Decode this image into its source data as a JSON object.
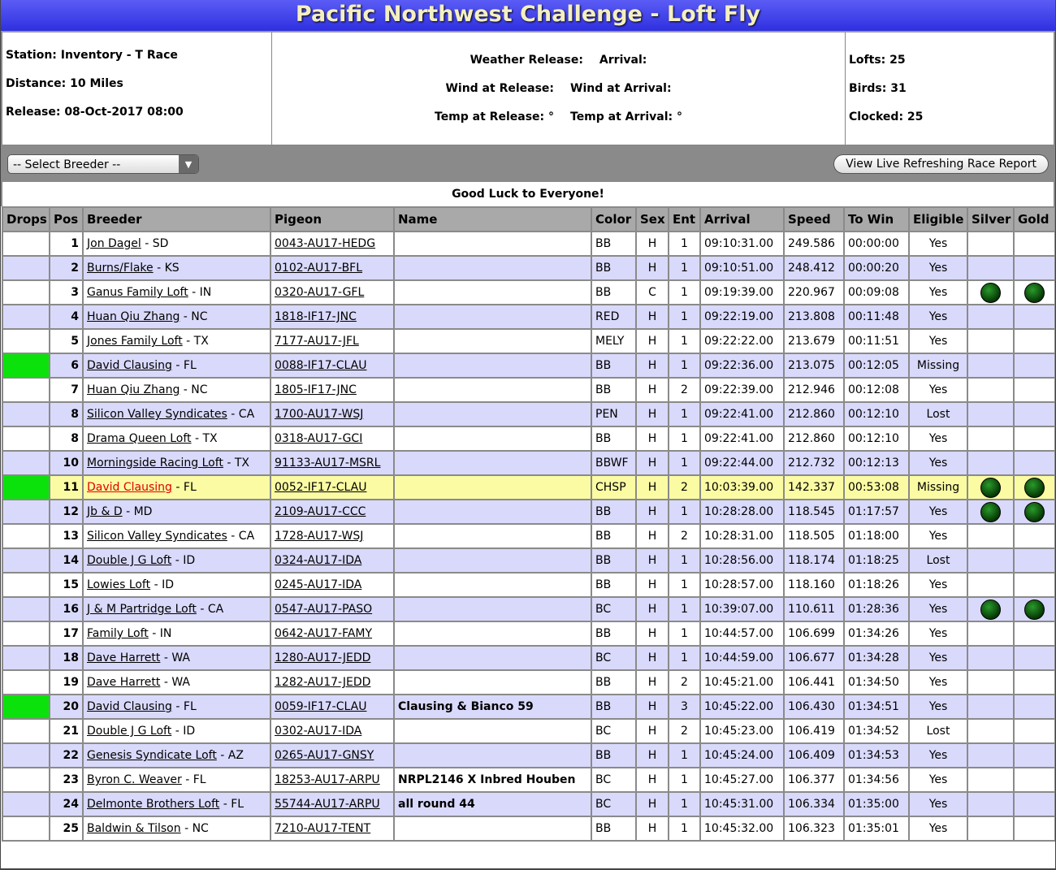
{
  "header": {
    "title": "Pacific Northwest Challenge - Loft Fly"
  },
  "info": {
    "left": [
      "Station: Inventory - T Race",
      "Distance: 10 Miles",
      "Release: 08-Oct-2017 08:00"
    ],
    "middle": [
      [
        "Weather Release:",
        "Arrival:"
      ],
      [
        "Wind at Release:",
        "Wind at Arrival:"
      ],
      [
        "Temp at Release: °",
        "Temp at Arrival: °"
      ]
    ],
    "right": [
      "Lofts: 25",
      "Birds: 31",
      "Clocked: 25"
    ]
  },
  "toolbar": {
    "select": "-- Select Breeder --",
    "button": "View Live Refreshing Race Report"
  },
  "table": {
    "caption": "Good Luck to Everyone!",
    "headers": [
      "Drops",
      "Pos",
      "Breeder",
      "Pigeon",
      "Name",
      "Color",
      "Sex",
      "Ent",
      "Arrival",
      "Speed",
      "To Win",
      "Eligible",
      "Silver",
      "Gold"
    ],
    "rows": [
      {
        "pos": "1",
        "breeder": "Jon Dagel",
        "state": "- SD",
        "pigeon": "0043-AU17-HEDG",
        "color": "BB",
        "sex": "H",
        "ent": "1",
        "arrival": "09:10:31.00",
        "speed": "249.586",
        "to_win": "00:00:00",
        "eligible": "Yes"
      },
      {
        "pos": "2",
        "breeder": "Burns/Flake",
        "state": "- KS",
        "pigeon": "0102-AU17-BFL",
        "color": "BB",
        "sex": "H",
        "ent": "1",
        "arrival": "09:10:51.00",
        "speed": "248.412",
        "to_win": "00:00:20",
        "eligible": "Yes"
      },
      {
        "pos": "3",
        "breeder": "Ganus Family Loft",
        "state": "- IN",
        "pigeon": "0320-AU17-GFL",
        "color": "BB",
        "sex": "C",
        "ent": "1",
        "arrival": "09:19:39.00",
        "speed": "220.967",
        "to_win": "00:09:08",
        "eligible": "Yes",
        "silver": true,
        "gold": true
      },
      {
        "pos": "4",
        "breeder": "Huan Qiu Zhang",
        "state": "- NC",
        "pigeon": "1818-IF17-JNC",
        "color": "RED",
        "sex": "H",
        "ent": "1",
        "arrival": "09:22:19.00",
        "speed": "213.808",
        "to_win": "00:11:48",
        "eligible": "Yes"
      },
      {
        "pos": "5",
        "breeder": "Jones Family Loft",
        "state": "- TX",
        "pigeon": "7177-AU17-JFL",
        "color": "MELY",
        "sex": "H",
        "ent": "1",
        "arrival": "09:22:22.00",
        "speed": "213.679",
        "to_win": "00:11:51",
        "eligible": "Yes"
      },
      {
        "pos": "6",
        "breeder": "David Clausing",
        "state": "- FL",
        "pigeon": "0088-IF17-CLAU",
        "color": "BB",
        "sex": "H",
        "ent": "1",
        "arrival": "09:22:36.00",
        "speed": "213.075",
        "to_win": "00:12:05",
        "eligible": "Missing",
        "drops": true
      },
      {
        "pos": "7",
        "breeder": "Huan Qiu Zhang",
        "state": "- NC",
        "pigeon": "1805-IF17-JNC",
        "color": "BB",
        "sex": "H",
        "ent": "2",
        "arrival": "09:22:39.00",
        "speed": "212.946",
        "to_win": "00:12:08",
        "eligible": "Yes"
      },
      {
        "pos": "8",
        "breeder": "Silicon Valley Syndicates",
        "state": "- CA",
        "pigeon": "1700-AU17-WSJ",
        "color": "PEN",
        "sex": "H",
        "ent": "1",
        "arrival": "09:22:41.00",
        "speed": "212.860",
        "to_win": "00:12:10",
        "eligible": "Lost"
      },
      {
        "pos": "8",
        "breeder": "Drama Queen Loft",
        "state": "- TX",
        "pigeon": "0318-AU17-GCI",
        "color": "BB",
        "sex": "H",
        "ent": "1",
        "arrival": "09:22:41.00",
        "speed": "212.860",
        "to_win": "00:12:10",
        "eligible": "Yes"
      },
      {
        "pos": "10",
        "breeder": "Morningside Racing Loft",
        "state": "- TX",
        "pigeon": "91133-AU17-MSRL",
        "color": "BBWF",
        "sex": "H",
        "ent": "1",
        "arrival": "09:22:44.00",
        "speed": "212.732",
        "to_win": "00:12:13",
        "eligible": "Yes"
      },
      {
        "pos": "11",
        "breeder": "David Clausing",
        "state": "- FL",
        "pigeon": "0052-IF17-CLAU",
        "color": "CHSP",
        "sex": "H",
        "ent": "2",
        "arrival": "10:03:39.00",
        "speed": "142.337",
        "to_win": "00:53:08",
        "eligible": "Missing",
        "drops": true,
        "highlight": true,
        "silver": true,
        "gold": true
      },
      {
        "pos": "12",
        "breeder": "Jb & D",
        "state": "- MD",
        "pigeon": "2109-AU17-CCC",
        "color": "BB",
        "sex": "H",
        "ent": "1",
        "arrival": "10:28:28.00",
        "speed": "118.545",
        "to_win": "01:17:57",
        "eligible": "Yes",
        "silver": true,
        "gold": true
      },
      {
        "pos": "13",
        "breeder": "Silicon Valley Syndicates",
        "state": "- CA",
        "pigeon": "1728-AU17-WSJ",
        "color": "BB",
        "sex": "H",
        "ent": "2",
        "arrival": "10:28:31.00",
        "speed": "118.505",
        "to_win": "01:18:00",
        "eligible": "Yes"
      },
      {
        "pos": "14",
        "breeder": "Double J G Loft",
        "state": "- ID",
        "pigeon": "0324-AU17-IDA",
        "color": "BB",
        "sex": "H",
        "ent": "1",
        "arrival": "10:28:56.00",
        "speed": "118.174",
        "to_win": "01:18:25",
        "eligible": "Lost"
      },
      {
        "pos": "15",
        "breeder": "Lowies Loft",
        "state": "- ID",
        "pigeon": "0245-AU17-IDA",
        "color": "BB",
        "sex": "H",
        "ent": "1",
        "arrival": "10:28:57.00",
        "speed": "118.160",
        "to_win": "01:18:26",
        "eligible": "Yes"
      },
      {
        "pos": "16",
        "breeder": "J & M Partridge Loft",
        "state": "- CA",
        "pigeon": "0547-AU17-PASO",
        "color": "BC",
        "sex": "H",
        "ent": "1",
        "arrival": "10:39:07.00",
        "speed": "110.611",
        "to_win": "01:28:36",
        "eligible": "Yes",
        "silver": true,
        "gold": true
      },
      {
        "pos": "17",
        "breeder": "Family Loft",
        "state": "- IN",
        "pigeon": "0642-AU17-FAMY",
        "color": "BB",
        "sex": "H",
        "ent": "1",
        "arrival": "10:44:57.00",
        "speed": "106.699",
        "to_win": "01:34:26",
        "eligible": "Yes"
      },
      {
        "pos": "18",
        "breeder": "Dave Harrett",
        "state": "- WA",
        "pigeon": "1280-AU17-JEDD",
        "color": "BC",
        "sex": "H",
        "ent": "1",
        "arrival": "10:44:59.00",
        "speed": "106.677",
        "to_win": "01:34:28",
        "eligible": "Yes"
      },
      {
        "pos": "19",
        "breeder": "Dave Harrett",
        "state": "- WA",
        "pigeon": "1282-AU17-JEDD",
        "color": "BB",
        "sex": "H",
        "ent": "2",
        "arrival": "10:45:21.00",
        "speed": "106.441",
        "to_win": "01:34:50",
        "eligible": "Yes"
      },
      {
        "pos": "20",
        "breeder": "David Clausing",
        "state": "- FL",
        "pigeon": "0059-IF17-CLAU",
        "name": "Clausing & Bianco 59",
        "color": "BB",
        "sex": "H",
        "ent": "3",
        "arrival": "10:45:22.00",
        "speed": "106.430",
        "to_win": "01:34:51",
        "eligible": "Yes",
        "drops": true
      },
      {
        "pos": "21",
        "breeder": "Double J G Loft",
        "state": "- ID",
        "pigeon": "0302-AU17-IDA",
        "color": "BC",
        "sex": "H",
        "ent": "2",
        "arrival": "10:45:23.00",
        "speed": "106.419",
        "to_win": "01:34:52",
        "eligible": "Lost"
      },
      {
        "pos": "22",
        "breeder": "Genesis Syndicate Loft",
        "state": "- AZ",
        "pigeon": "0265-AU17-GNSY",
        "color": "BB",
        "sex": "H",
        "ent": "1",
        "arrival": "10:45:24.00",
        "speed": "106.409",
        "to_win": "01:34:53",
        "eligible": "Yes"
      },
      {
        "pos": "23",
        "breeder": "Byron C. Weaver",
        "state": "- FL",
        "pigeon": "18253-AU17-ARPU",
        "name": "NRPL2146 X Inbred Houben",
        "color": "BC",
        "sex": "H",
        "ent": "1",
        "arrival": "10:45:27.00",
        "speed": "106.377",
        "to_win": "01:34:56",
        "eligible": "Yes"
      },
      {
        "pos": "24",
        "breeder": "Delmonte Brothers Loft",
        "state": "- FL",
        "pigeon": "55744-AU17-ARPU",
        "name": "all round 44",
        "color": "BC",
        "sex": "H",
        "ent": "1",
        "arrival": "10:45:31.00",
        "speed": "106.334",
        "to_win": "01:35:00",
        "eligible": "Yes"
      },
      {
        "pos": "25",
        "breeder": "Baldwin & Tilson",
        "state": "- NC",
        "pigeon": "7210-AU17-TENT",
        "color": "BB",
        "sex": "H",
        "ent": "1",
        "arrival": "10:45:32.00",
        "speed": "106.323",
        "to_win": "01:35:01",
        "eligible": "Yes"
      }
    ]
  }
}
